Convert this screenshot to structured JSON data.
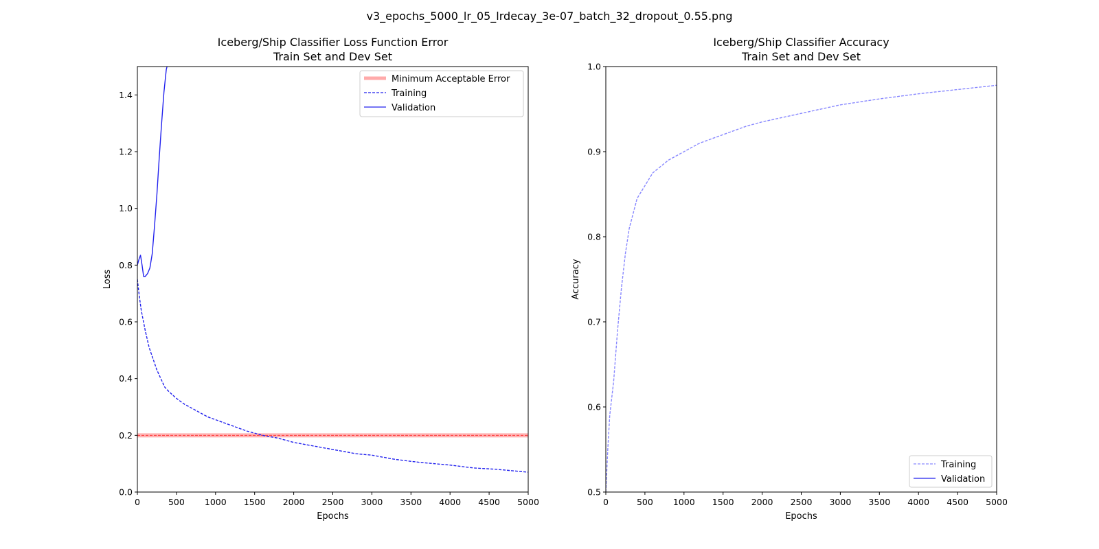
{
  "figure": {
    "suptitle": "v3_epochs_5000_lr_05_lrdecay_3e-07_batch_32_dropout_0.55.png"
  },
  "chart_data": [
    {
      "type": "line",
      "title_lines": [
        "Iceberg/Ship Classifier Loss Function Error",
        "Train Set and Dev Set"
      ],
      "xlabel": "Epochs",
      "ylabel": "Loss",
      "xlim": [
        0,
        5000
      ],
      "ylim": [
        0,
        1.5
      ],
      "xticks": [
        "0",
        "500",
        "1000",
        "1500",
        "2000",
        "2500",
        "3000",
        "3500",
        "4000",
        "4500",
        "5000"
      ],
      "yticks": [
        "0.0",
        "0.2",
        "0.4",
        "0.6",
        "0.8",
        "1.0",
        "1.2",
        "1.4"
      ],
      "grid": false,
      "legend_position": "upper right",
      "reference_line": {
        "name": "Minimum Acceptable Error",
        "y": 0.2,
        "color": "#ff9999"
      },
      "series": [
        {
          "name": "Training",
          "style": "dashed",
          "color": "#2222ee",
          "x": [
            0,
            25,
            50,
            100,
            150,
            200,
            250,
            300,
            350,
            400,
            500,
            600,
            700,
            800,
            900,
            1000,
            1200,
            1400,
            1600,
            1800,
            2000,
            2200,
            2400,
            2600,
            2800,
            3000,
            3300,
            3600,
            4000,
            4300,
            4600,
            5000
          ],
          "y": [
            0.75,
            0.69,
            0.64,
            0.57,
            0.51,
            0.47,
            0.43,
            0.4,
            0.37,
            0.355,
            0.33,
            0.31,
            0.295,
            0.28,
            0.265,
            0.255,
            0.235,
            0.215,
            0.2,
            0.19,
            0.175,
            0.165,
            0.155,
            0.145,
            0.135,
            0.13,
            0.115,
            0.105,
            0.095,
            0.085,
            0.08,
            0.07
          ]
        },
        {
          "name": "Validation",
          "style": "solid",
          "color": "#2222ee",
          "x": [
            0,
            20,
            40,
            60,
            80,
            100,
            130,
            160,
            190,
            220,
            250,
            280,
            310,
            340,
            370,
            380
          ],
          "y": [
            0.8,
            0.82,
            0.835,
            0.8,
            0.76,
            0.76,
            0.77,
            0.79,
            0.84,
            0.94,
            1.05,
            1.18,
            1.3,
            1.41,
            1.49,
            1.5
          ]
        }
      ]
    },
    {
      "type": "line",
      "title_lines": [
        "Iceberg/Ship Classifier Accuracy",
        "Train Set and Dev Set"
      ],
      "xlabel": "Epochs",
      "ylabel": "Accuracy",
      "xlim": [
        0,
        5000
      ],
      "ylim": [
        0.5,
        1.0
      ],
      "xticks": [
        "0",
        "500",
        "1000",
        "1500",
        "2000",
        "2500",
        "3000",
        "3500",
        "4000",
        "4500",
        "5000"
      ],
      "yticks": [
        "0.5",
        "0.6",
        "0.7",
        "0.8",
        "0.9",
        "1.0"
      ],
      "grid": false,
      "legend_position": "lower right",
      "series": [
        {
          "name": "Training",
          "style": "dashed",
          "color": "#8888ff",
          "x": [
            0,
            25,
            50,
            100,
            150,
            200,
            250,
            300,
            400,
            500,
            600,
            800,
            1000,
            1200,
            1500,
            1800,
            2000,
            2500,
            3000,
            3500,
            4000,
            4500,
            5000
          ],
          "y": [
            0.5,
            0.55,
            0.59,
            0.63,
            0.69,
            0.74,
            0.78,
            0.81,
            0.845,
            0.86,
            0.875,
            0.89,
            0.9,
            0.91,
            0.92,
            0.93,
            0.935,
            0.945,
            0.955,
            0.962,
            0.968,
            0.973,
            0.978
          ]
        },
        {
          "name": "Validation",
          "style": "solid",
          "color": "#2222ee",
          "x": [],
          "y": []
        }
      ]
    }
  ]
}
